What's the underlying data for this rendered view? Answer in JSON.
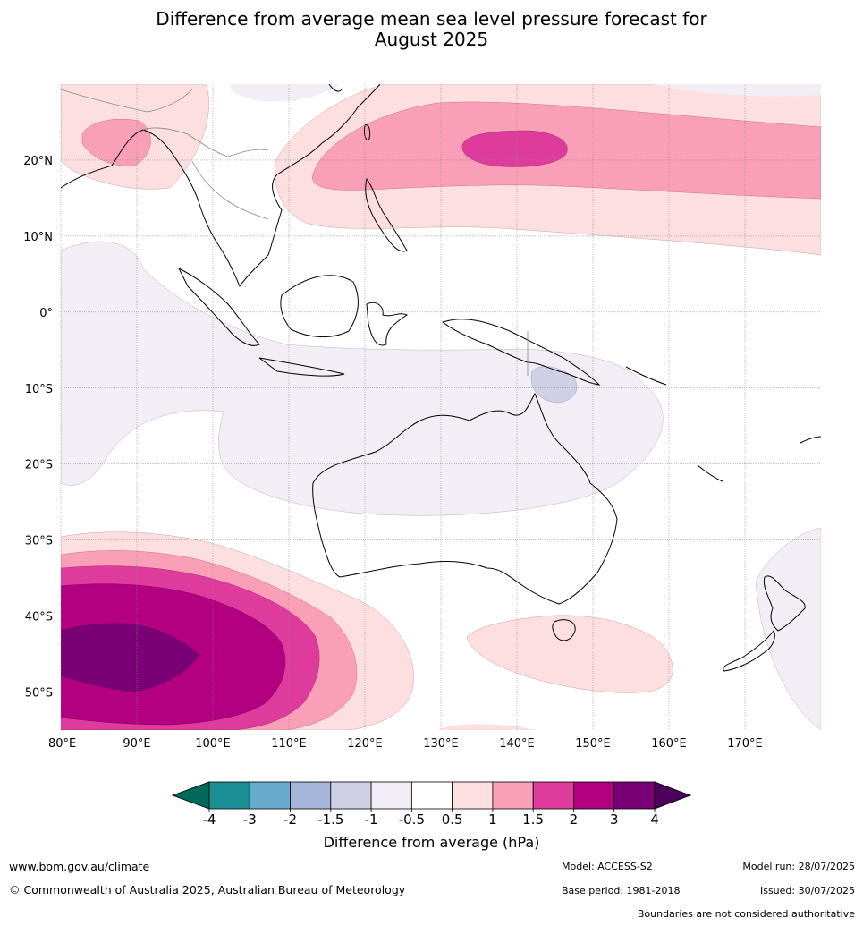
{
  "title": {
    "line1": "Difference from average mean sea level pressure forecast for",
    "line2": "August 2025"
  },
  "map": {
    "lon_range": [
      80,
      180
    ],
    "lat_range": [
      -55,
      30
    ],
    "grid": true,
    "lon_ticks": [
      {
        "value": 80,
        "label": "80°E"
      },
      {
        "value": 90,
        "label": "90°E"
      },
      {
        "value": 100,
        "label": "100°E"
      },
      {
        "value": 110,
        "label": "110°E"
      },
      {
        "value": 120,
        "label": "120°E"
      },
      {
        "value": 130,
        "label": "130°E"
      },
      {
        "value": 140,
        "label": "140°E"
      },
      {
        "value": 150,
        "label": "150°E"
      },
      {
        "value": 160,
        "label": "160°E"
      },
      {
        "value": 170,
        "label": "170°E"
      }
    ],
    "lat_ticks": [
      {
        "value": 20,
        "label": "20°N"
      },
      {
        "value": 10,
        "label": "10°N"
      },
      {
        "value": 0,
        "label": "0°"
      },
      {
        "value": -10,
        "label": "10°S"
      },
      {
        "value": -20,
        "label": "20°S"
      },
      {
        "value": -30,
        "label": "30°S"
      },
      {
        "value": -40,
        "label": "40°S"
      },
      {
        "value": -50,
        "label": "50°S"
      }
    ]
  },
  "colorbar": {
    "label": "Difference from average (hPa)",
    "ticks": [
      "-4",
      "-3",
      "-2",
      "-1.5",
      "-1",
      "-0.5",
      "0.5",
      "1",
      "1.5",
      "2",
      "3",
      "4"
    ],
    "colors": [
      "#1b8f93",
      "#69aacf",
      "#a4b5d8",
      "#cfd0e6",
      "#f3edf5",
      "#ffffff",
      "#fedfdf",
      "#f9a0b8",
      "#de3b9c",
      "#b30081",
      "#7a0075"
    ],
    "under_color": "#00695a",
    "over_color": "#4b0059"
  },
  "footer": {
    "website": "www.bom.gov.au/climate",
    "copyright": "© Commonwealth of Australia 2025, Australian Bureau of Meteorology",
    "model": "Model: ACCESS-S2",
    "base_period": "Base period: 1981-2018",
    "model_run": "Model run: 28/07/2025",
    "issued": "Issued: 30/07/2025",
    "disclaimer": "Boundaries are not considered authoritative"
  }
}
